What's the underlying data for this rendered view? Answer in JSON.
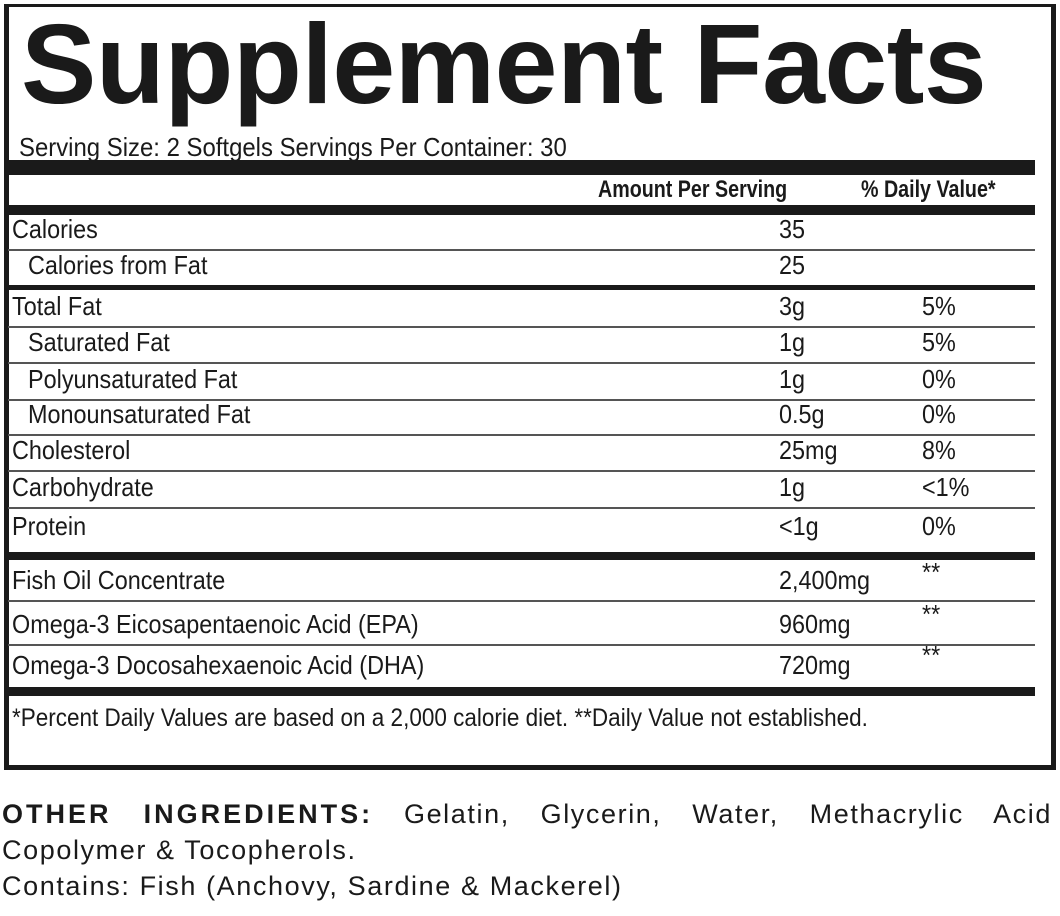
{
  "title": "Supplement Facts",
  "serving": "Serving Size: 2 Softgels  Servings Per Container: 30",
  "header": {
    "amount": "Amount Per Serving",
    "daily_value": "% Daily Value*"
  },
  "nutrients": [
    {
      "label": "Calories",
      "amount": "35",
      "dv": ""
    },
    {
      "label": "Calories from Fat",
      "amount": "25",
      "dv": ""
    },
    {
      "label": "Total Fat",
      "amount": "3g",
      "dv": "5%"
    },
    {
      "label": "Saturated Fat",
      "amount": "1g",
      "dv": "5%"
    },
    {
      "label": "Polyunsaturated Fat",
      "amount": "1g",
      "dv": "0%"
    },
    {
      "label": "Monounsaturated Fat",
      "amount": "0.5g",
      "dv": "0%"
    },
    {
      "label": "Cholesterol",
      "amount": "25mg",
      "dv": "8%"
    },
    {
      "label": "Carbohydrate",
      "amount": "1g",
      "dv": "<1%"
    },
    {
      "label": "Protein",
      "amount": "<1g",
      "dv": "0%"
    }
  ],
  "actives": [
    {
      "label": "Fish Oil Concentrate",
      "amount": "2,400mg",
      "dv": "**"
    },
    {
      "label": "Omega-3 Eicosapentaenoic Acid (EPA)",
      "amount": "960mg",
      "dv": "**"
    },
    {
      "label": "Omega-3 Docosahexaenoic Acid (DHA)",
      "amount": "720mg",
      "dv": "**"
    }
  ],
  "footnote": "*Percent Daily Values are based on a 2,000 calorie diet.  **Daily Value not established.",
  "other": {
    "heading": "OTHER INGREDIENTS:",
    "line1": "Gelatin, Glycerin, Water, Methacrylic Acid",
    "line2": "Copolymer & Tocopherols.",
    "contains": "Contains: Fish (Anchovy, Sardine & Mackerel)"
  }
}
